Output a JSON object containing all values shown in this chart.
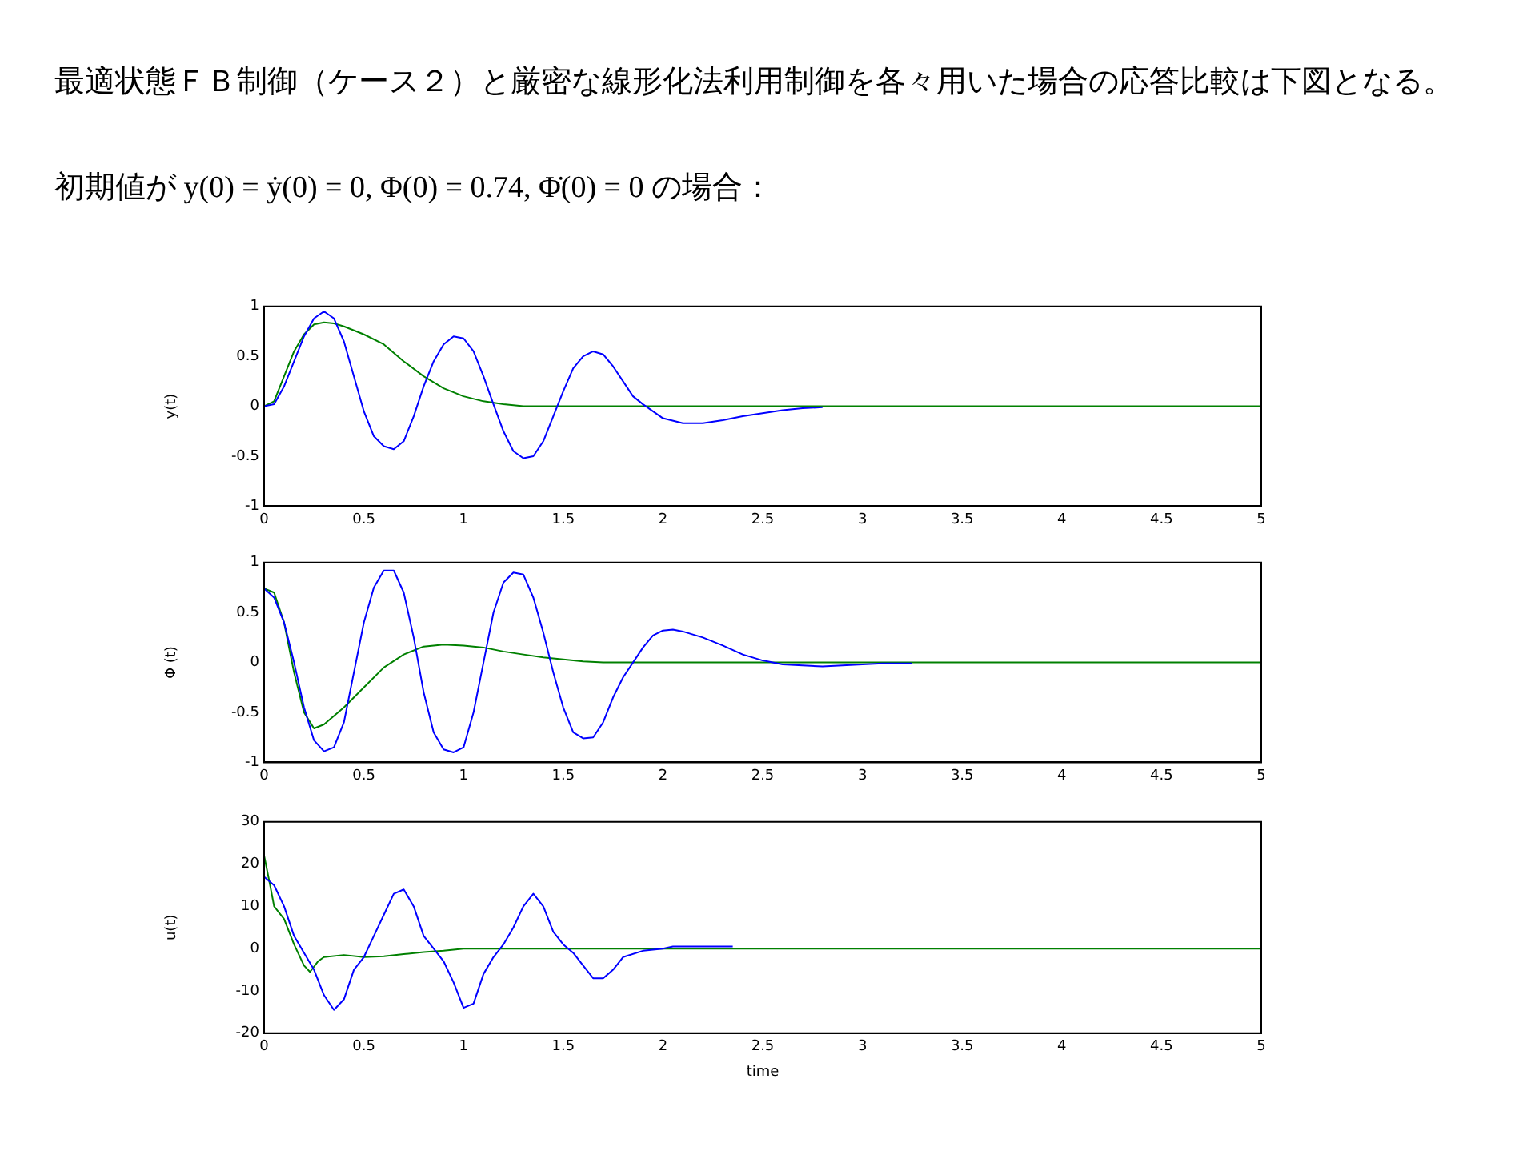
{
  "chart_data": [
    {
      "type": "line",
      "title": "最適状態ＦＢ制御（ケース２）と厳密な線形化法利用制御を各々用いた場合の応答比較は下図となる。",
      "subtitle": "初期値が y(0) = ẏ(0) = 0, Φ(0) = 0.74, Φ̇(0) = 0 の場合：",
      "ylabel": "y(t)",
      "xlim": [
        0,
        5
      ],
      "xticks": [
        0,
        0.5,
        1,
        1.5,
        2,
        2.5,
        3,
        3.5,
        4,
        4.5,
        5
      ],
      "ylim": [
        -1,
        1
      ],
      "yticks": [
        -1,
        -0.5,
        0,
        0.5,
        1
      ],
      "grid": false,
      "legend": false,
      "marker": "none",
      "line_style": "solid",
      "series": [
        {
          "color": "#0000ff",
          "x": [
            0,
            0.05,
            0.1,
            0.15,
            0.2,
            0.25,
            0.3,
            0.35,
            0.4,
            0.45,
            0.5,
            0.55,
            0.6,
            0.65,
            0.7,
            0.75,
            0.8,
            0.85,
            0.9,
            0.95,
            1.0,
            1.05,
            1.1,
            1.15,
            1.2,
            1.25,
            1.3,
            1.35,
            1.4,
            1.45,
            1.5,
            1.55,
            1.6,
            1.65,
            1.7,
            1.75,
            1.8,
            1.85,
            1.9,
            1.95,
            2.0,
            2.1,
            2.2,
            2.3,
            2.4,
            2.5,
            2.6,
            2.7,
            2.8
          ],
          "values": [
            0,
            0.02,
            0.2,
            0.45,
            0.7,
            0.88,
            0.95,
            0.88,
            0.65,
            0.3,
            -0.05,
            -0.3,
            -0.4,
            -0.43,
            -0.35,
            -0.1,
            0.2,
            0.45,
            0.62,
            0.7,
            0.68,
            0.55,
            0.3,
            0.02,
            -0.25,
            -0.45,
            -0.52,
            -0.5,
            -0.35,
            -0.1,
            0.15,
            0.38,
            0.5,
            0.55,
            0.52,
            0.4,
            0.25,
            0.1,
            0.02,
            -0.05,
            -0.12,
            -0.17,
            -0.17,
            -0.14,
            -0.1,
            -0.07,
            -0.04,
            -0.02,
            -0.01
          ]
        },
        {
          "color": "#008000",
          "x": [
            0,
            0.05,
            0.1,
            0.15,
            0.2,
            0.25,
            0.3,
            0.35,
            0.4,
            0.5,
            0.6,
            0.7,
            0.8,
            0.9,
            1.0,
            1.1,
            1.2,
            1.3,
            5
          ],
          "values": [
            0,
            0.05,
            0.3,
            0.55,
            0.72,
            0.82,
            0.84,
            0.83,
            0.8,
            0.72,
            0.62,
            0.45,
            0.3,
            0.18,
            0.1,
            0.05,
            0.02,
            0,
            0
          ]
        }
      ]
    },
    {
      "type": "line",
      "ylabel": "Φ (t)",
      "xlim": [
        0,
        5
      ],
      "xticks": [
        0,
        0.5,
        1,
        1.5,
        2,
        2.5,
        3,
        3.5,
        4,
        4.5,
        5
      ],
      "ylim": [
        -1,
        1
      ],
      "yticks": [
        -1,
        -0.5,
        0,
        0.5,
        1
      ],
      "grid": false,
      "legend": false,
      "marker": "none",
      "line_style": "solid",
      "series": [
        {
          "color": "#0000ff",
          "x": [
            0,
            0.05,
            0.1,
            0.15,
            0.2,
            0.25,
            0.3,
            0.35,
            0.4,
            0.45,
            0.5,
            0.55,
            0.6,
            0.65,
            0.7,
            0.75,
            0.8,
            0.85,
            0.9,
            0.95,
            1.0,
            1.05,
            1.1,
            1.15,
            1.2,
            1.25,
            1.3,
            1.35,
            1.4,
            1.45,
            1.5,
            1.55,
            1.6,
            1.65,
            1.7,
            1.75,
            1.8,
            1.85,
            1.9,
            1.95,
            2.0,
            2.05,
            2.1,
            2.2,
            2.3,
            2.4,
            2.5,
            2.6,
            2.7,
            2.8,
            2.9,
            3.0,
            3.1,
            3.25
          ],
          "values": [
            0.74,
            0.65,
            0.4,
            0,
            -0.45,
            -0.78,
            -0.89,
            -0.85,
            -0.6,
            -0.1,
            0.4,
            0.75,
            0.92,
            0.92,
            0.7,
            0.25,
            -0.3,
            -0.7,
            -0.87,
            -0.9,
            -0.85,
            -0.5,
            0,
            0.5,
            0.8,
            0.9,
            0.88,
            0.65,
            0.3,
            -0.1,
            -0.45,
            -0.7,
            -0.76,
            -0.75,
            -0.6,
            -0.35,
            -0.15,
            0,
            0.15,
            0.27,
            0.32,
            0.33,
            0.31,
            0.25,
            0.17,
            0.08,
            0.02,
            -0.02,
            -0.03,
            -0.04,
            -0.03,
            -0.02,
            -0.01,
            -0.01
          ]
        },
        {
          "color": "#008000",
          "x": [
            0,
            0.05,
            0.1,
            0.15,
            0.2,
            0.25,
            0.3,
            0.4,
            0.5,
            0.6,
            0.7,
            0.8,
            0.9,
            1.0,
            1.1,
            1.2,
            1.3,
            1.4,
            1.5,
            1.6,
            1.7,
            5
          ],
          "values": [
            0.74,
            0.7,
            0.4,
            -0.1,
            -0.5,
            -0.66,
            -0.62,
            -0.45,
            -0.25,
            -0.05,
            0.08,
            0.16,
            0.18,
            0.17,
            0.15,
            0.11,
            0.08,
            0.05,
            0.03,
            0.01,
            0,
            0
          ]
        }
      ]
    },
    {
      "type": "line",
      "xlabel": "time",
      "ylabel": "u(t)",
      "xlim": [
        0,
        5
      ],
      "xticks": [
        0,
        0.5,
        1,
        1.5,
        2,
        2.5,
        3,
        3.5,
        4,
        4.5,
        5
      ],
      "ylim": [
        -20,
        30
      ],
      "yticks": [
        -20,
        -10,
        0,
        10,
        20,
        30
      ],
      "grid": false,
      "legend": false,
      "marker": "none",
      "line_style": "solid",
      "series": [
        {
          "color": "#0000ff",
          "x": [
            0,
            0.05,
            0.1,
            0.15,
            0.2,
            0.25,
            0.3,
            0.35,
            0.4,
            0.45,
            0.5,
            0.55,
            0.6,
            0.65,
            0.7,
            0.75,
            0.8,
            0.85,
            0.9,
            0.95,
            1.0,
            1.05,
            1.1,
            1.15,
            1.2,
            1.25,
            1.3,
            1.35,
            1.4,
            1.45,
            1.5,
            1.55,
            1.6,
            1.65,
            1.7,
            1.75,
            1.8,
            1.9,
            2.0,
            2.05,
            2.35
          ],
          "values": [
            17,
            15,
            10,
            3,
            -1,
            -5,
            -11,
            -14.5,
            -12,
            -5,
            -2,
            3,
            8,
            13,
            14,
            10,
            3,
            0,
            -3,
            -8,
            -14,
            -13,
            -6,
            -2,
            1,
            5,
            10,
            13,
            10,
            4,
            1,
            -1,
            -4,
            -7,
            -7,
            -5,
            -2,
            -0.5,
            0,
            0.5,
            0.5
          ]
        },
        {
          "color": "#008000",
          "x": [
            0,
            0.03,
            0.05,
            0.1,
            0.15,
            0.2,
            0.23,
            0.27,
            0.3,
            0.4,
            0.5,
            0.6,
            0.7,
            0.8,
            0.9,
            1.0,
            5
          ],
          "values": [
            22,
            15,
            10,
            7,
            1,
            -4,
            -5.5,
            -3,
            -2,
            -1.5,
            -2,
            -1.8,
            -1.3,
            -0.8,
            -0.5,
            0,
            0
          ]
        }
      ]
    }
  ]
}
